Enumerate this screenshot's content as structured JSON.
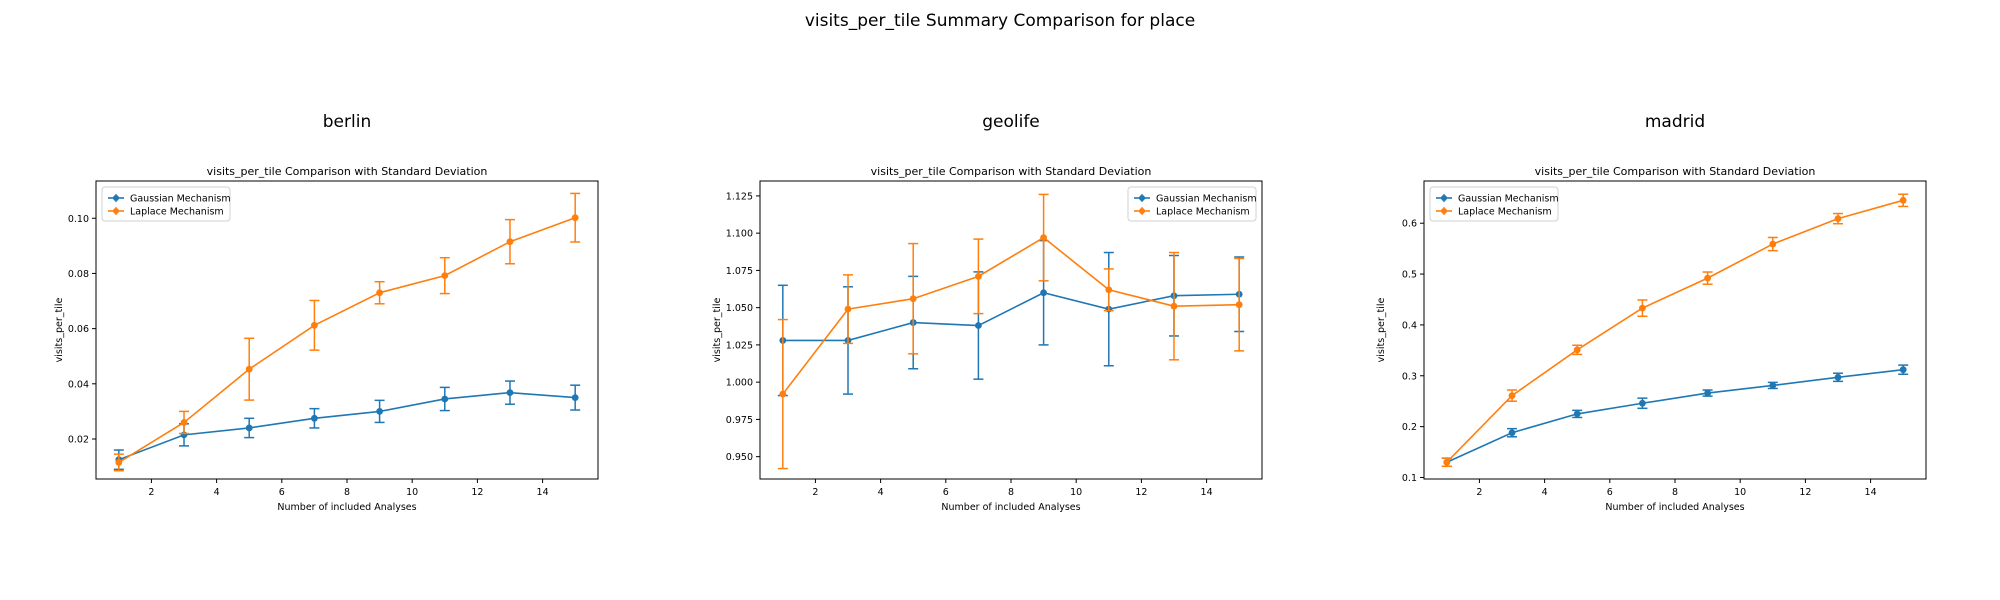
{
  "figure": {
    "title": "visits_per_tile Summary Comparison for place"
  },
  "colors": {
    "gaussian": "#1f77b4",
    "laplace": "#ff7f0e"
  },
  "chart_data": [
    {
      "type": "line",
      "subplot_title": "berlin",
      "title": "visits_per_tile Comparison with Standard Deviation",
      "xlabel": "Number of included Analyses",
      "ylabel": "visits_per_tile",
      "xlim": [
        0.3,
        15.7
      ],
      "ylim": [
        0.0055,
        0.1135
      ],
      "xticks": [
        2,
        4,
        6,
        8,
        10,
        12,
        14
      ],
      "yticks": [
        0.02,
        0.04,
        0.06,
        0.08,
        0.1
      ],
      "ytick_labels": [
        "0.02",
        "0.04",
        "0.06",
        "0.08",
        "0.10"
      ],
      "legend": "top-left",
      "grid": false,
      "x": [
        1,
        3,
        5,
        7,
        9,
        11,
        13,
        15
      ],
      "series": [
        {
          "name": "Gaussian Mechanism",
          "color": "#1f77b4",
          "marker": "circle",
          "values": [
            0.0125,
            0.0215,
            0.024,
            0.0275,
            0.03,
            0.0345,
            0.0368,
            0.035
          ],
          "std": [
            0.0035,
            0.004,
            0.0035,
            0.0035,
            0.004,
            0.0042,
            0.0042,
            0.0045
          ]
        },
        {
          "name": "Laplace Mechanism",
          "color": "#ff7f0e",
          "marker": "circle",
          "values": [
            0.0115,
            0.026,
            0.0453,
            0.0612,
            0.073,
            0.0792,
            0.0915,
            0.1002
          ],
          "std": [
            0.003,
            0.004,
            0.0112,
            0.009,
            0.004,
            0.0065,
            0.008,
            0.0088
          ]
        }
      ]
    },
    {
      "type": "line",
      "subplot_title": "geolife",
      "title": "visits_per_tile Comparison with Standard Deviation",
      "xlabel": "Number of included Analyses",
      "ylabel": "visits_per_tile",
      "xlim": [
        0.3,
        15.7
      ],
      "ylim": [
        0.935,
        1.135
      ],
      "xticks": [
        2,
        4,
        6,
        8,
        10,
        12,
        14
      ],
      "yticks": [
        0.95,
        0.975,
        1.0,
        1.025,
        1.05,
        1.075,
        1.1,
        1.125
      ],
      "ytick_labels": [
        "0.950",
        "0.975",
        "1.000",
        "1.025",
        "1.050",
        "1.075",
        "1.100",
        "1.125"
      ],
      "legend": "top-right",
      "grid": false,
      "x": [
        1,
        3,
        5,
        7,
        9,
        11,
        13,
        15
      ],
      "series": [
        {
          "name": "Gaussian Mechanism",
          "color": "#1f77b4",
          "marker": "circle",
          "values": [
            1.028,
            1.028,
            1.04,
            1.038,
            1.06,
            1.049,
            1.058,
            1.059
          ],
          "std": [
            0.037,
            0.036,
            0.031,
            0.036,
            0.035,
            0.038,
            0.027,
            0.025
          ]
        },
        {
          "name": "Laplace Mechanism",
          "color": "#ff7f0e",
          "marker": "circle",
          "values": [
            0.992,
            1.049,
            1.056,
            1.071,
            1.097,
            1.062,
            1.051,
            1.052
          ],
          "std": [
            0.05,
            0.023,
            0.037,
            0.025,
            0.029,
            0.014,
            0.036,
            0.031
          ]
        }
      ]
    },
    {
      "type": "line",
      "subplot_title": "madrid",
      "title": "visits_per_tile Comparison with Standard Deviation",
      "xlabel": "Number of included Analyses",
      "ylabel": "visits_per_tile",
      "xlim": [
        0.3,
        15.7
      ],
      "ylim": [
        0.097,
        0.683
      ],
      "xticks": [
        2,
        4,
        6,
        8,
        10,
        12,
        14
      ],
      "yticks": [
        0.1,
        0.2,
        0.3,
        0.4,
        0.5,
        0.6
      ],
      "ytick_labels": [
        "0.1",
        "0.2",
        "0.3",
        "0.4",
        "0.5",
        "0.6"
      ],
      "legend": "top-left",
      "grid": false,
      "x": [
        1,
        3,
        5,
        7,
        9,
        11,
        13,
        15
      ],
      "series": [
        {
          "name": "Gaussian Mechanism",
          "color": "#1f77b4",
          "marker": "circle",
          "values": [
            0.13,
            0.188,
            0.225,
            0.246,
            0.266,
            0.281,
            0.297,
            0.312
          ],
          "std": [
            0.008,
            0.008,
            0.007,
            0.01,
            0.006,
            0.006,
            0.008,
            0.009
          ]
        },
        {
          "name": "Laplace Mechanism",
          "color": "#ff7f0e",
          "marker": "circle",
          "values": [
            0.13,
            0.261,
            0.351,
            0.433,
            0.492,
            0.559,
            0.609,
            0.645
          ],
          "std": [
            0.008,
            0.011,
            0.009,
            0.016,
            0.012,
            0.013,
            0.01,
            0.012
          ]
        }
      ]
    }
  ]
}
